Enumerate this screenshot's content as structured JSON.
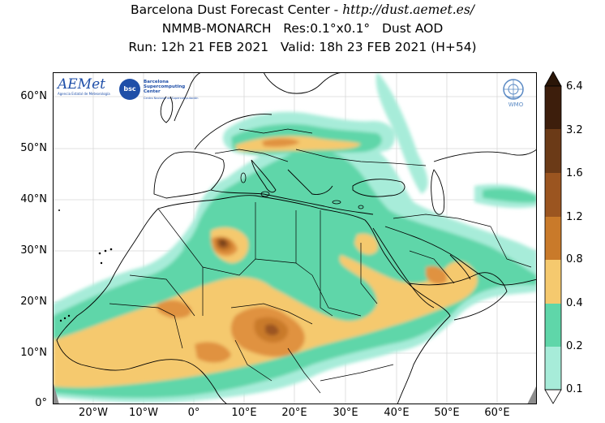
{
  "title": {
    "line1_prefix": "Barcelona Dust Forecast Center - ",
    "line1_url": "http://dust.aemet.es/",
    "line2": "NMMB-MONARCH   Res:0.1°x0.1°   Dust AOD",
    "line3": "Run: 12h 21 FEB 2021   Valid: 18h 23 FEB 2021 (H+54)"
  },
  "map": {
    "lat_labels": [
      "60°N",
      "50°N",
      "40°N",
      "30°N",
      "20°N",
      "10°N",
      "0°"
    ],
    "lon_labels": [
      "20°W",
      "10°W",
      "0°",
      "10°E",
      "20°E",
      "30°E",
      "40°E",
      "50°E",
      "60°E"
    ],
    "colors": {
      "ocean": "#ffffff",
      "land": "#ffffff",
      "border": "#000000",
      "graticule": "#cfcfcf"
    }
  },
  "logos": {
    "aemet": "AEMet",
    "aemet_sub": "Agencia Estatal de Meteorología",
    "bsc": "bsc",
    "bsc_name": "Barcelona Supercomputing Center",
    "bsc_sub": "Centro Nacional de Supercomputación",
    "wmo": "WMO"
  },
  "colorbar": {
    "labels": [
      "6.4",
      "3.2",
      "1.6",
      "1.2",
      "0.8",
      "0.4",
      "0.2",
      "0.1"
    ],
    "colors": [
      "#3d1e0c",
      "#6b3a17",
      "#9b5520",
      "#c97a2a",
      "#e0923f",
      "#f5c96e",
      "#5fd6a9",
      "#a7ecd9"
    ]
  }
}
